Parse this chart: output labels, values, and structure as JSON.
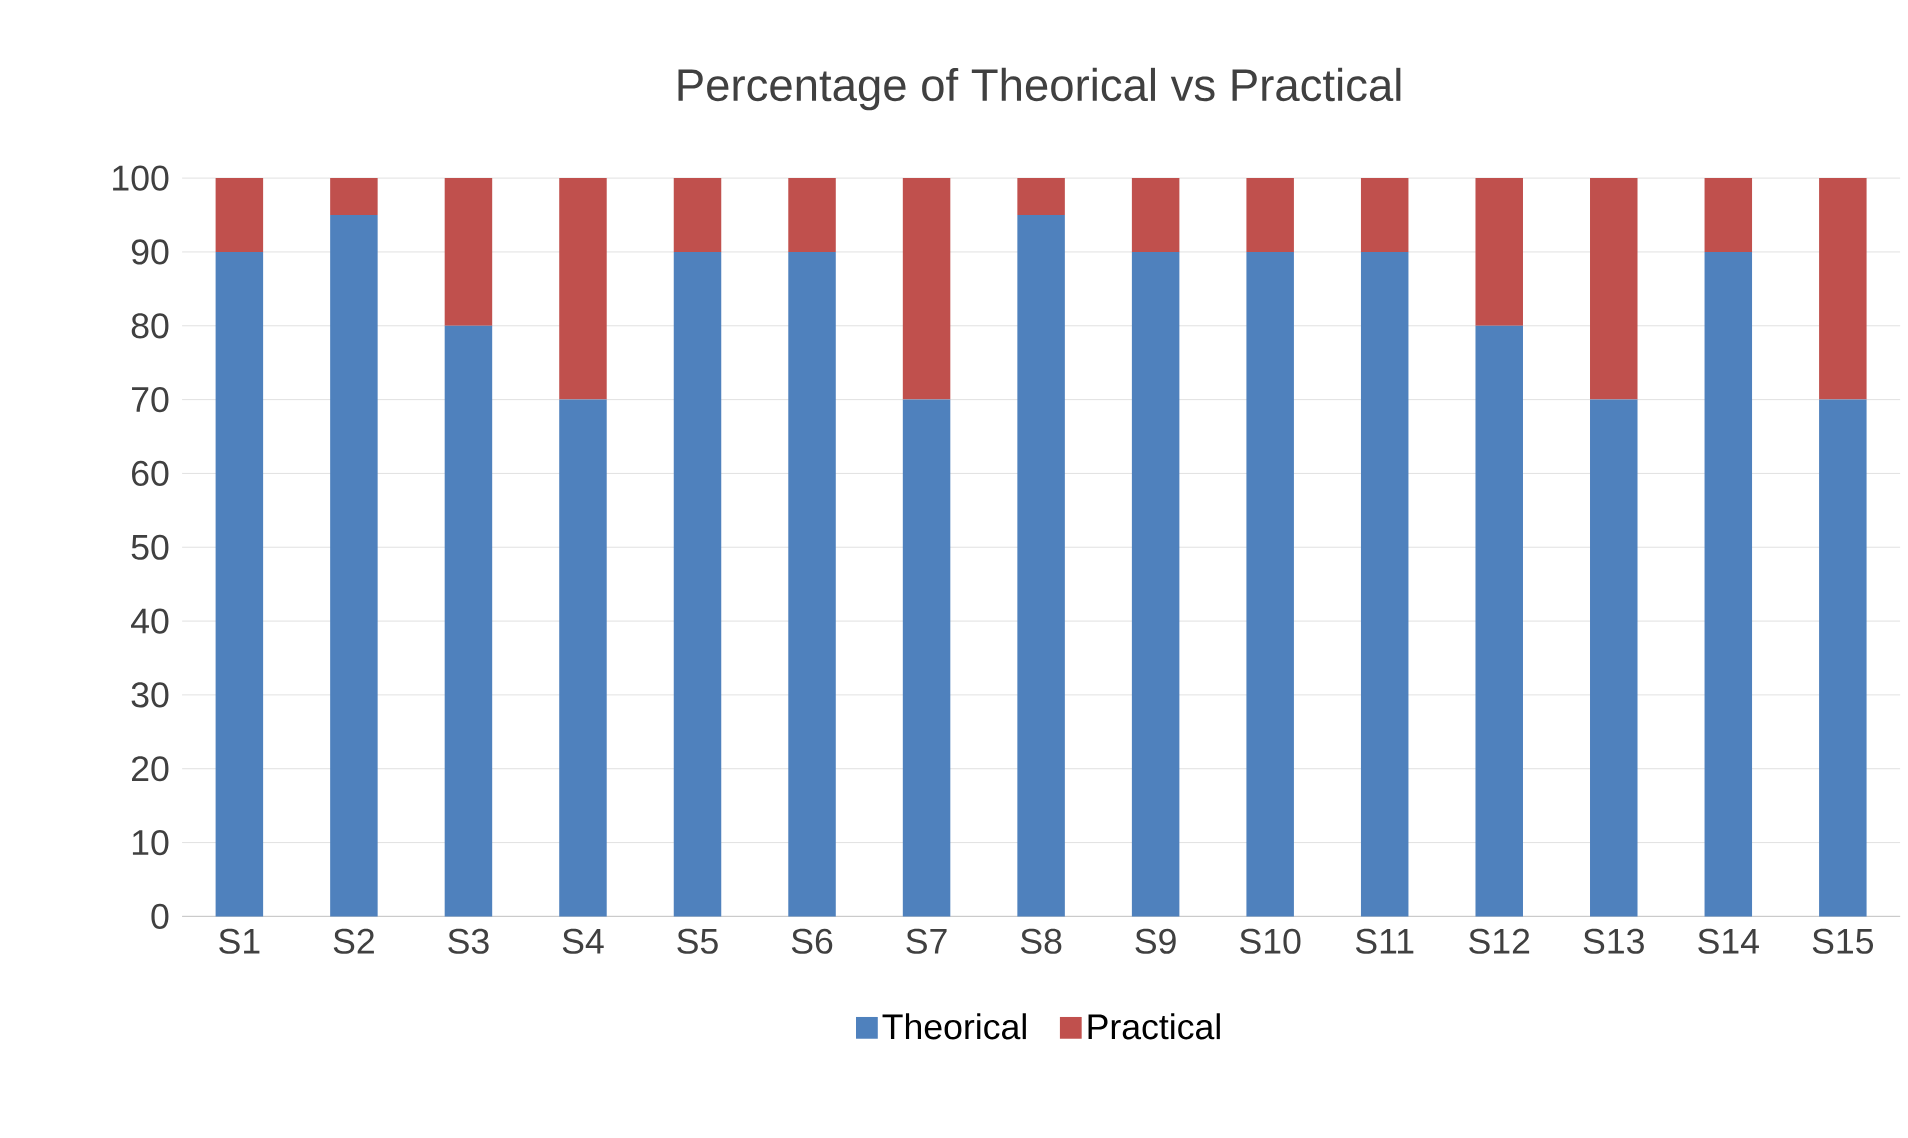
{
  "chart_data": {
    "type": "bar",
    "title": "Percentage of Theorical vs Practical",
    "stacked": true,
    "categories": [
      "S1",
      "S2",
      "S3",
      "S4",
      "S5",
      "S6",
      "S7",
      "S8",
      "S9",
      "S10",
      "S11",
      "S12",
      "S13",
      "S14",
      "S15"
    ],
    "series": [
      {
        "name": "Theorical",
        "color": "#4f81bd",
        "values": [
          90,
          95,
          80,
          70,
          90,
          90,
          70,
          95,
          90,
          90,
          90,
          80,
          70,
          90,
          70
        ]
      },
      {
        "name": "Practical",
        "color": "#c0504d",
        "values": [
          10,
          5,
          20,
          30,
          10,
          10,
          30,
          5,
          10,
          10,
          10,
          20,
          30,
          10,
          30
        ]
      }
    ],
    "ylim": [
      0,
      100
    ],
    "yticks": [
      0,
      10,
      20,
      30,
      40,
      50,
      60,
      70,
      80,
      90,
      100
    ],
    "grid": "y",
    "legend": "bottom"
  }
}
